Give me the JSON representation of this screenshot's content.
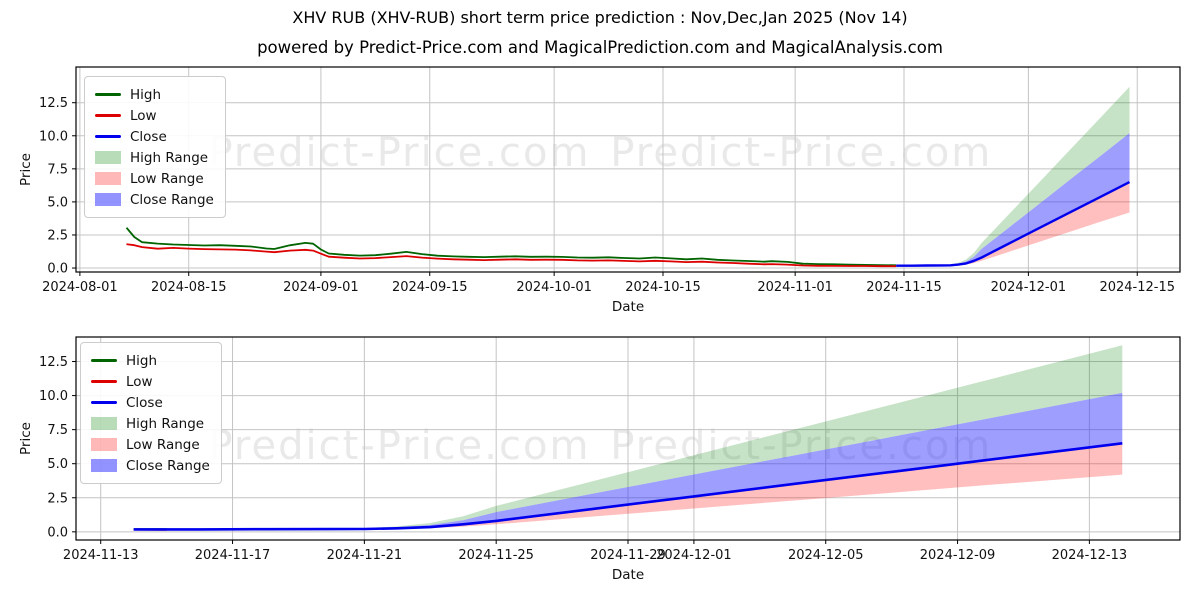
{
  "header": {
    "title": "XHV RUB (XHV-RUB) short term price prediction : Nov,Dec,Jan 2025 (Nov 14)",
    "subtitle": "powered by Predict-Price.com and MagicalPrediction.com and MagicalAnalysis.com"
  },
  "watermark": {
    "text": "Predict-Price.com",
    "color": "#e9e9e9"
  },
  "colors": {
    "high_line": "#006400",
    "low_line": "#dd0000",
    "close_line": "#0000ee",
    "high_range_fill": "rgba(0,128,0,0.22)",
    "low_range_fill": "rgba(255,0,0,0.25)",
    "close_range_fill": "rgba(40,40,255,0.45)",
    "grid": "#c4c4c4",
    "spine": "#000000"
  },
  "legend": {
    "items": [
      {
        "label": "High",
        "type": "line",
        "color": "#006400"
      },
      {
        "label": "Low",
        "type": "line",
        "color": "#dd0000"
      },
      {
        "label": "Close",
        "type": "line",
        "color": "#0000ee"
      },
      {
        "label": "High Range",
        "type": "patch",
        "color": "rgba(0,128,0,0.28)"
      },
      {
        "label": "Low Range",
        "type": "patch",
        "color": "rgba(255,0,0,0.28)"
      },
      {
        "label": "Close Range",
        "type": "patch",
        "color": "rgba(40,40,255,0.5)"
      }
    ]
  },
  "chart_data": [
    {
      "type": "line",
      "xlabel": "Date",
      "ylabel": "Price",
      "grid": true,
      "legend_position": "upper left",
      "x_domain": [
        "2024-07-31T12:00:00",
        "2024-12-20T12:00:00"
      ],
      "ylim": [
        -0.3,
        15.2
      ],
      "yticks": [
        0.0,
        2.5,
        5.0,
        7.5,
        10.0,
        12.5
      ],
      "xticks": [
        "2024-08-01",
        "2024-08-15",
        "2024-09-01",
        "2024-09-15",
        "2024-10-01",
        "2024-10-15",
        "2024-11-01",
        "2024-11-15",
        "2024-12-01",
        "2024-12-15"
      ],
      "series": [
        {
          "name": "High",
          "color": "#006400",
          "width": 1.8,
          "x": [
            "2024-08-07",
            "2024-08-08",
            "2024-08-09",
            "2024-08-11",
            "2024-08-13",
            "2024-08-15",
            "2024-08-17",
            "2024-08-19",
            "2024-08-21",
            "2024-08-23",
            "2024-08-25",
            "2024-08-26",
            "2024-08-28",
            "2024-08-30",
            "2024-08-31",
            "2024-09-01",
            "2024-09-02",
            "2024-09-04",
            "2024-09-06",
            "2024-09-08",
            "2024-09-10",
            "2024-09-12",
            "2024-09-14",
            "2024-09-16",
            "2024-09-18",
            "2024-09-20",
            "2024-09-22",
            "2024-09-24",
            "2024-09-26",
            "2024-09-28",
            "2024-09-30",
            "2024-10-02",
            "2024-10-04",
            "2024-10-06",
            "2024-10-08",
            "2024-10-10",
            "2024-10-12",
            "2024-10-14",
            "2024-10-16",
            "2024-10-18",
            "2024-10-20",
            "2024-10-22",
            "2024-10-24",
            "2024-10-26",
            "2024-10-28",
            "2024-10-29",
            "2024-10-31",
            "2024-11-02",
            "2024-11-04",
            "2024-11-06",
            "2024-11-08",
            "2024-11-10",
            "2024-11-12",
            "2024-11-14"
          ],
          "y": [
            3.05,
            2.35,
            1.95,
            1.85,
            1.78,
            1.74,
            1.7,
            1.73,
            1.68,
            1.63,
            1.48,
            1.44,
            1.72,
            1.9,
            1.84,
            1.4,
            1.1,
            1.0,
            0.94,
            0.97,
            1.08,
            1.22,
            1.05,
            0.93,
            0.88,
            0.85,
            0.83,
            0.86,
            0.89,
            0.85,
            0.86,
            0.84,
            0.8,
            0.78,
            0.81,
            0.76,
            0.72,
            0.8,
            0.73,
            0.66,
            0.72,
            0.62,
            0.57,
            0.53,
            0.48,
            0.52,
            0.46,
            0.33,
            0.3,
            0.28,
            0.26,
            0.24,
            0.22,
            0.21
          ]
        },
        {
          "name": "Low",
          "color": "#dd0000",
          "width": 1.8,
          "x": [
            "2024-08-07",
            "2024-08-08",
            "2024-08-09",
            "2024-08-11",
            "2024-08-13",
            "2024-08-15",
            "2024-08-17",
            "2024-08-19",
            "2024-08-21",
            "2024-08-23",
            "2024-08-25",
            "2024-08-26",
            "2024-08-28",
            "2024-08-30",
            "2024-08-31",
            "2024-09-01",
            "2024-09-02",
            "2024-09-04",
            "2024-09-06",
            "2024-09-08",
            "2024-09-10",
            "2024-09-12",
            "2024-09-14",
            "2024-09-16",
            "2024-09-18",
            "2024-09-20",
            "2024-09-22",
            "2024-09-24",
            "2024-09-26",
            "2024-09-28",
            "2024-09-30",
            "2024-10-02",
            "2024-10-04",
            "2024-10-06",
            "2024-10-08",
            "2024-10-10",
            "2024-10-12",
            "2024-10-14",
            "2024-10-16",
            "2024-10-18",
            "2024-10-20",
            "2024-10-22",
            "2024-10-24",
            "2024-10-26",
            "2024-10-28",
            "2024-10-29",
            "2024-10-31",
            "2024-11-02",
            "2024-11-04",
            "2024-11-06",
            "2024-11-08",
            "2024-11-10",
            "2024-11-12",
            "2024-11-14"
          ],
          "y": [
            1.8,
            1.73,
            1.58,
            1.46,
            1.52,
            1.47,
            1.43,
            1.41,
            1.39,
            1.33,
            1.24,
            1.2,
            1.32,
            1.38,
            1.32,
            1.08,
            0.86,
            0.78,
            0.72,
            0.75,
            0.83,
            0.9,
            0.79,
            0.71,
            0.66,
            0.63,
            0.6,
            0.63,
            0.66,
            0.62,
            0.63,
            0.62,
            0.58,
            0.56,
            0.58,
            0.54,
            0.5,
            0.55,
            0.5,
            0.45,
            0.48,
            0.42,
            0.38,
            0.33,
            0.28,
            0.3,
            0.26,
            0.19,
            0.17,
            0.16,
            0.15,
            0.15,
            0.14,
            0.14
          ]
        },
        {
          "name": "Close",
          "color": "#0000ee",
          "width": 2.4,
          "x": [
            "2024-11-14",
            "2024-11-16",
            "2024-11-18",
            "2024-11-20",
            "2024-11-21",
            "2024-11-22",
            "2024-11-23",
            "2024-11-24",
            "2024-11-25",
            "2024-11-28",
            "2024-12-01",
            "2024-12-04",
            "2024-12-07",
            "2024-12-10",
            "2024-12-14"
          ],
          "y": [
            0.18,
            0.18,
            0.19,
            0.2,
            0.21,
            0.26,
            0.35,
            0.55,
            0.8,
            1.7,
            2.6,
            3.5,
            4.4,
            5.3,
            6.5
          ]
        }
      ],
      "bands": [
        {
          "name": "High Range",
          "fill": "rgba(0,128,0,0.22)",
          "x": [
            "2024-11-14",
            "2024-11-16",
            "2024-11-18",
            "2024-11-20",
            "2024-11-21",
            "2024-11-22",
            "2024-11-23",
            "2024-11-24",
            "2024-11-25",
            "2024-11-28",
            "2024-12-01",
            "2024-12-04",
            "2024-12-07",
            "2024-12-10",
            "2024-12-14"
          ],
          "upper": [
            0.2,
            0.2,
            0.22,
            0.25,
            0.28,
            0.4,
            0.65,
            1.15,
            1.9,
            3.76,
            5.62,
            7.48,
            9.34,
            11.2,
            13.7
          ],
          "lower": [
            0.19,
            0.19,
            0.2,
            0.22,
            0.24,
            0.33,
            0.5,
            0.85,
            1.45,
            2.83,
            4.21,
            5.59,
            6.97,
            8.35,
            10.2
          ]
        },
        {
          "name": "Close Range",
          "fill": "rgba(40,40,255,0.45)",
          "x": [
            "2024-11-14",
            "2024-11-16",
            "2024-11-18",
            "2024-11-20",
            "2024-11-21",
            "2024-11-22",
            "2024-11-23",
            "2024-11-24",
            "2024-11-25",
            "2024-11-28",
            "2024-12-01",
            "2024-12-04",
            "2024-12-07",
            "2024-12-10",
            "2024-12-14"
          ],
          "upper": [
            0.19,
            0.19,
            0.2,
            0.22,
            0.24,
            0.33,
            0.5,
            0.85,
            1.45,
            2.83,
            4.21,
            5.59,
            6.97,
            8.35,
            10.2
          ],
          "lower": [
            0.18,
            0.18,
            0.19,
            0.2,
            0.21,
            0.26,
            0.35,
            0.55,
            0.8,
            1.7,
            2.6,
            3.5,
            4.4,
            5.3,
            6.5
          ]
        },
        {
          "name": "Low Range",
          "fill": "rgba(255,0,0,0.25)",
          "x": [
            "2024-11-14",
            "2024-11-16",
            "2024-11-18",
            "2024-11-20",
            "2024-11-21",
            "2024-11-22",
            "2024-11-23",
            "2024-11-24",
            "2024-11-25",
            "2024-11-28",
            "2024-12-01",
            "2024-12-04",
            "2024-12-07",
            "2024-12-10",
            "2024-12-14"
          ],
          "upper": [
            0.18,
            0.18,
            0.19,
            0.2,
            0.21,
            0.26,
            0.35,
            0.55,
            0.8,
            1.7,
            2.6,
            3.5,
            4.4,
            5.3,
            6.5
          ],
          "lower": [
            0.15,
            0.15,
            0.16,
            0.17,
            0.18,
            0.21,
            0.26,
            0.38,
            0.55,
            1.13,
            1.71,
            2.29,
            2.87,
            3.45,
            4.2
          ]
        }
      ]
    },
    {
      "type": "line",
      "xlabel": "Date",
      "ylabel": "Price",
      "grid": true,
      "legend_position": "upper left",
      "x_domain": [
        "2024-11-12T06:00:00",
        "2024-12-15T18:00:00"
      ],
      "ylim": [
        -0.6,
        14.3
      ],
      "yticks": [
        0.0,
        2.5,
        5.0,
        7.5,
        10.0,
        12.5
      ],
      "xticks": [
        "2024-11-13",
        "2024-11-17",
        "2024-11-21",
        "2024-11-25",
        "2024-11-29",
        "2024-12-01",
        "2024-12-05",
        "2024-12-09",
        "2024-12-13"
      ],
      "series": [
        {
          "name": "High",
          "color": "#006400",
          "width": 1.8,
          "x": [
            "2024-11-14",
            "2024-11-15"
          ],
          "y": [
            0.2,
            0.19
          ]
        },
        {
          "name": "Low",
          "color": "#dd0000",
          "width": 1.8,
          "x": [
            "2024-11-14",
            "2024-11-15"
          ],
          "y": [
            0.16,
            0.15
          ]
        },
        {
          "name": "Close",
          "color": "#0000ee",
          "width": 2.6,
          "x": [
            "2024-11-14",
            "2024-11-16",
            "2024-11-18",
            "2024-11-20",
            "2024-11-21",
            "2024-11-22",
            "2024-11-23",
            "2024-11-24",
            "2024-11-25",
            "2024-11-28",
            "2024-12-01",
            "2024-12-04",
            "2024-12-07",
            "2024-12-10",
            "2024-12-14"
          ],
          "y": [
            0.18,
            0.18,
            0.19,
            0.2,
            0.21,
            0.26,
            0.35,
            0.55,
            0.8,
            1.7,
            2.6,
            3.5,
            4.4,
            5.3,
            6.5
          ]
        }
      ],
      "bands": [
        {
          "name": "High Range",
          "fill": "rgba(0,128,0,0.22)",
          "x": [
            "2024-11-14",
            "2024-11-16",
            "2024-11-18",
            "2024-11-20",
            "2024-11-21",
            "2024-11-22",
            "2024-11-23",
            "2024-11-24",
            "2024-11-25",
            "2024-11-28",
            "2024-12-01",
            "2024-12-04",
            "2024-12-07",
            "2024-12-10",
            "2024-12-14"
          ],
          "upper": [
            0.2,
            0.2,
            0.22,
            0.25,
            0.28,
            0.4,
            0.65,
            1.15,
            1.9,
            3.76,
            5.62,
            7.48,
            9.34,
            11.2,
            13.7
          ],
          "lower": [
            0.19,
            0.19,
            0.2,
            0.22,
            0.24,
            0.33,
            0.5,
            0.85,
            1.45,
            2.83,
            4.21,
            5.59,
            6.97,
            8.35,
            10.2
          ]
        },
        {
          "name": "Close Range",
          "fill": "rgba(40,40,255,0.45)",
          "x": [
            "2024-11-14",
            "2024-11-16",
            "2024-11-18",
            "2024-11-20",
            "2024-11-21",
            "2024-11-22",
            "2024-11-23",
            "2024-11-24",
            "2024-11-25",
            "2024-11-28",
            "2024-12-01",
            "2024-12-04",
            "2024-12-07",
            "2024-12-10",
            "2024-12-14"
          ],
          "upper": [
            0.19,
            0.19,
            0.2,
            0.22,
            0.24,
            0.33,
            0.5,
            0.85,
            1.45,
            2.83,
            4.21,
            5.59,
            6.97,
            8.35,
            10.2
          ],
          "lower": [
            0.18,
            0.18,
            0.19,
            0.2,
            0.21,
            0.26,
            0.35,
            0.55,
            0.8,
            1.7,
            2.6,
            3.5,
            4.4,
            5.3,
            6.5
          ]
        },
        {
          "name": "Low Range",
          "fill": "rgba(255,0,0,0.25)",
          "x": [
            "2024-11-14",
            "2024-11-16",
            "2024-11-18",
            "2024-11-20",
            "2024-11-21",
            "2024-11-22",
            "2024-11-23",
            "2024-11-24",
            "2024-11-25",
            "2024-11-28",
            "2024-12-01",
            "2024-12-04",
            "2024-12-07",
            "2024-12-10",
            "2024-12-14"
          ],
          "upper": [
            0.18,
            0.18,
            0.19,
            0.2,
            0.21,
            0.26,
            0.35,
            0.55,
            0.8,
            1.7,
            2.6,
            3.5,
            4.4,
            5.3,
            6.5
          ],
          "lower": [
            0.15,
            0.15,
            0.16,
            0.17,
            0.18,
            0.21,
            0.26,
            0.38,
            0.55,
            1.13,
            1.71,
            2.29,
            2.87,
            3.45,
            4.2
          ]
        }
      ]
    }
  ]
}
